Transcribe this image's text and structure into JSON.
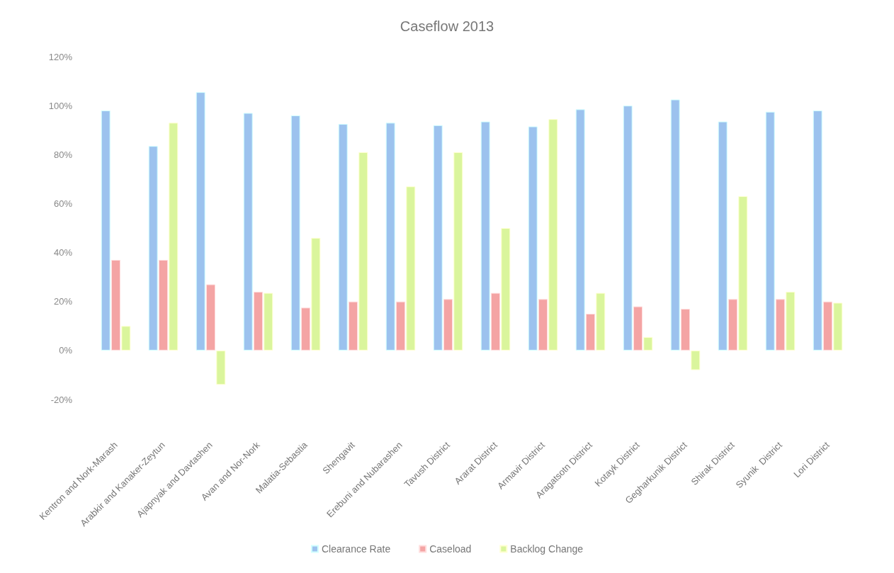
{
  "chart_data": {
    "type": "bar",
    "title": "Caseflow 2013",
    "categories": [
      "Kentron and Nork-Marash",
      "Arabkir and Kanaker-Zeytun",
      "Ajapnyak and Davtashen",
      "Avan and Nor-Nork",
      "Malatia-Sebastia",
      "Shengavit",
      "Erebuni and Nubarashen",
      "Tavush District",
      "Ararat District",
      "Armavir District",
      "Aragatsotn District",
      "Kotayk District",
      "Gegharkunik District",
      "Shirak District",
      "Syunik  District",
      "Lori District"
    ],
    "series": [
      {
        "name": "Clearance Rate",
        "color": "#9cc2ee",
        "values": [
          98,
          83.5,
          105.5,
          97,
          96,
          92.5,
          93,
          92,
          93.5,
          91.5,
          98.5,
          100,
          102.5,
          93.5,
          97.5,
          98
        ]
      },
      {
        "name": "Caseload",
        "color": "#f4a4a4",
        "values": [
          37,
          37,
          27,
          24,
          17.5,
          20,
          20,
          21,
          23.5,
          21,
          15,
          18,
          17,
          21,
          21,
          20
        ]
      },
      {
        "name": "Backlog Change",
        "color": "#daf59c",
        "values": [
          10,
          93,
          -14,
          23.5,
          46,
          81,
          67,
          81,
          50,
          94.5,
          23.5,
          5.5,
          -8,
          63,
          24,
          19.5
        ]
      }
    ],
    "ylim": [
      -20,
      120
    ],
    "yticks": [
      {
        "value": -20,
        "label": "-20%"
      },
      {
        "value": 0,
        "label": "0%"
      },
      {
        "value": 20,
        "label": "20%"
      },
      {
        "value": 40,
        "label": "40%"
      },
      {
        "value": 60,
        "label": "60%"
      },
      {
        "value": 80,
        "label": "80%"
      },
      {
        "value": 100,
        "label": "100%"
      },
      {
        "value": 120,
        "label": "120%"
      }
    ],
    "grid": false,
    "legend": "bottom"
  }
}
